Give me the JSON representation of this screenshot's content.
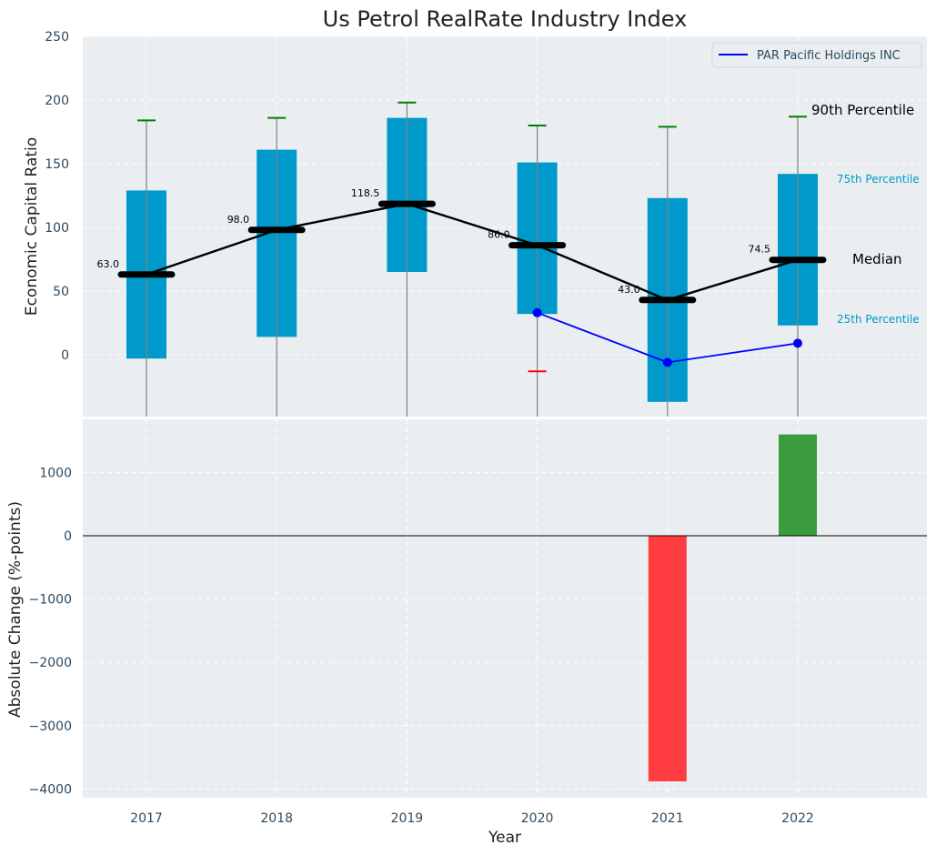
{
  "chart_data": [
    {
      "type": "box",
      "title": "Us Petrol RealRate Industry Index",
      "ylabel": "Economic Capital Ratio",
      "ylim": [
        -48,
        250
      ],
      "yticks": [
        0,
        50,
        100,
        150,
        200,
        250
      ],
      "categories": [
        "2017",
        "2018",
        "2019",
        "2020",
        "2021",
        "2022"
      ],
      "p25": [
        -3,
        14,
        65,
        32,
        -37,
        23
      ],
      "p75": [
        129,
        161,
        186,
        151,
        123,
        142
      ],
      "median": [
        63.0,
        98.0,
        118.5,
        86.0,
        43.0,
        74.5
      ],
      "median_labels": [
        "63.0",
        "98.0",
        "118.5",
        "86.0",
        "43.0",
        "74.5"
      ],
      "p90": [
        184,
        186,
        198,
        180,
        179,
        187
      ],
      "p10": [
        null,
        null,
        null,
        -13,
        null,
        null
      ],
      "company_series": {
        "name": "PAR Pacific Holdings INC",
        "categories": [
          "2020",
          "2021",
          "2022"
        ],
        "values": [
          33,
          -6,
          9
        ]
      },
      "legend": {
        "position": "top-right",
        "label": "PAR Pacific Holdings INC"
      },
      "annotations": {
        "p90": "90th Percentile",
        "p75": "75th Percentile",
        "median": "Median",
        "p25": "25th Percentile"
      },
      "grid": true
    },
    {
      "type": "bar",
      "xlabel": "Year",
      "ylabel": "Absolute Change (%-points)",
      "ylim": [
        -4150,
        1600
      ],
      "yticks": [
        -4000,
        -3000,
        -2000,
        -1000,
        0,
        1000
      ],
      "ytick_labels": [
        "−4000",
        "−3000",
        "−2000",
        "−1000",
        "0",
        "1000"
      ],
      "categories": [
        "2017",
        "2018",
        "2019",
        "2020",
        "2021",
        "2022"
      ],
      "values": [
        null,
        null,
        null,
        null,
        -3880,
        1600
      ],
      "grid": true
    }
  ],
  "colors": {
    "box": "#0099cc",
    "median_line": "#000000",
    "company_line": "#0000ff",
    "p90_cap": "#008000",
    "p10_cap": "#ff0000",
    "bar_negative": "#ff3c3f",
    "bar_positive": "#3a9c3c",
    "axes_bg": "#eaeef0",
    "text": "#2e4a5e",
    "label_cyan": "#0099cc"
  }
}
